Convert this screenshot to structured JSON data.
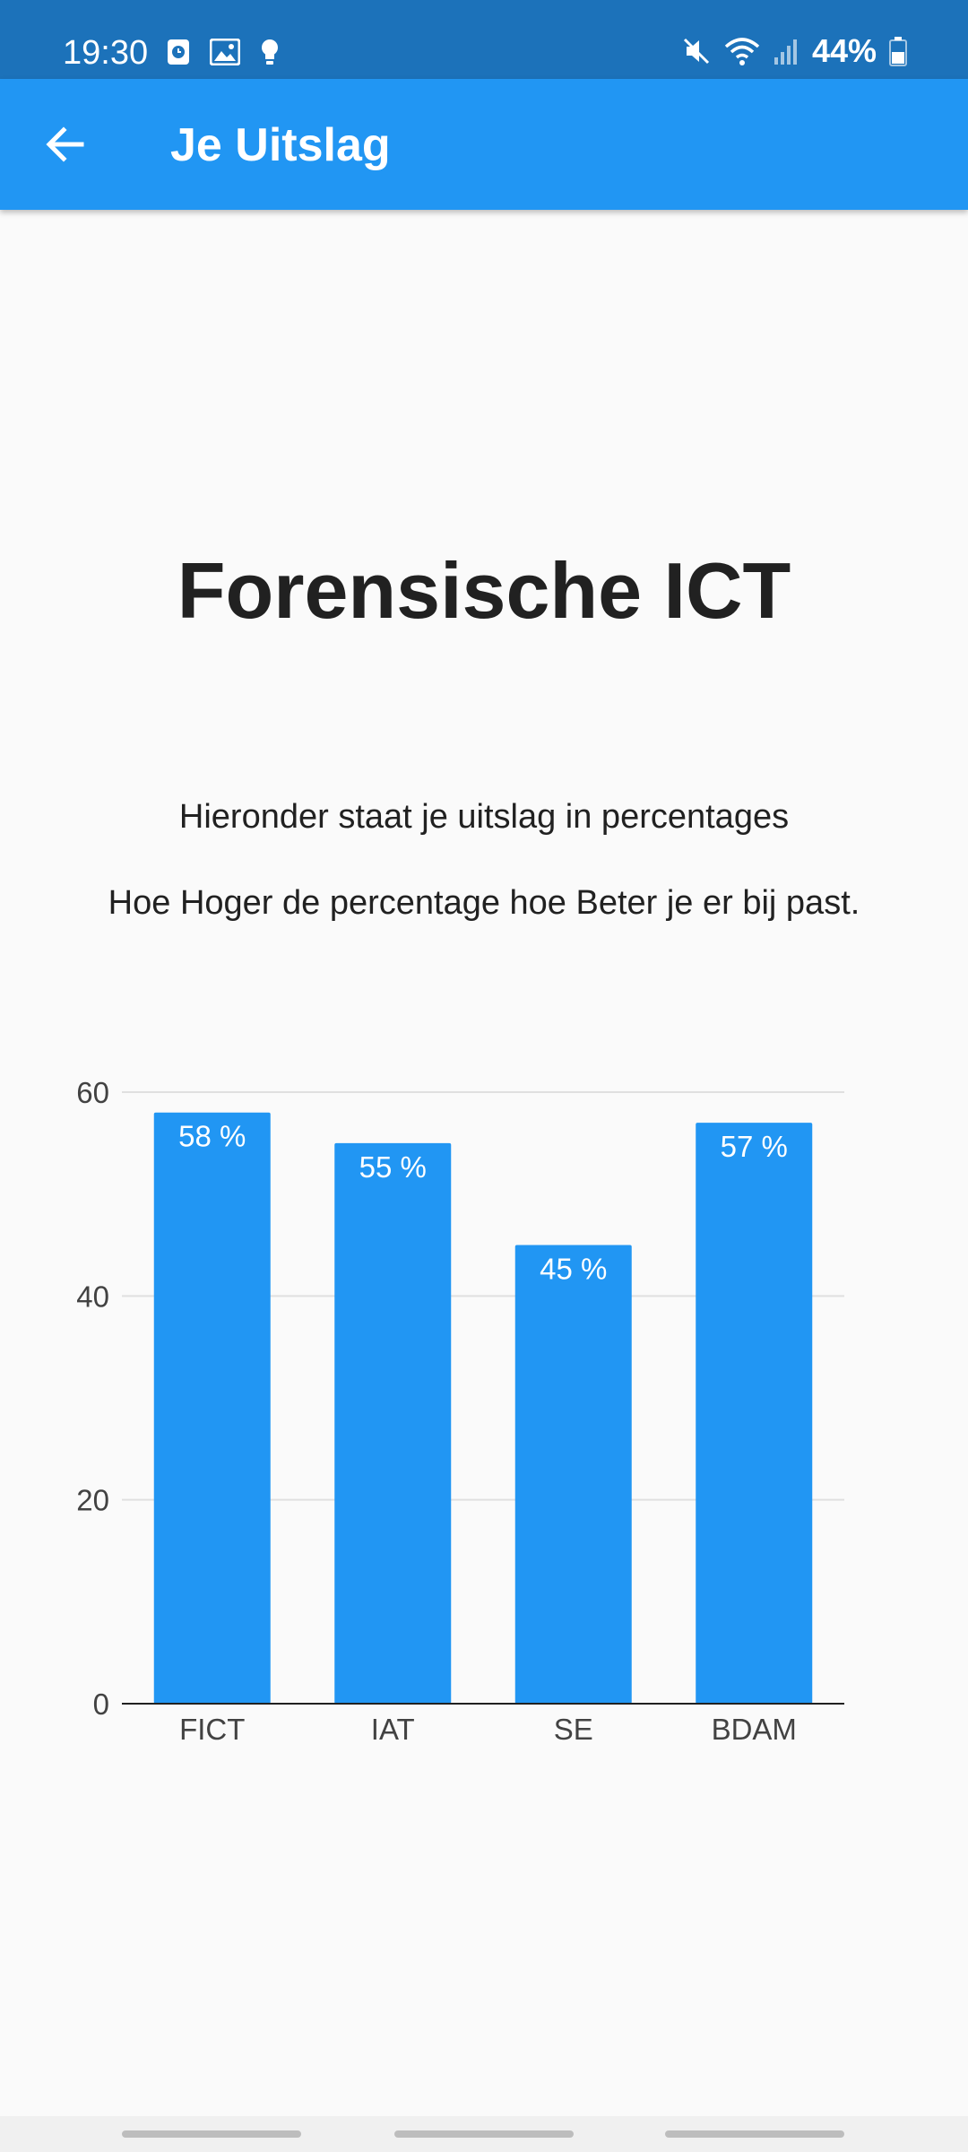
{
  "status_bar": {
    "time": "19:30",
    "battery": "44%",
    "left_icons": [
      "alarm-icon",
      "gallery-icon",
      "bulb-icon"
    ],
    "right_icons": [
      "mute-icon",
      "wifi-icon",
      "signal-icon",
      "battery-icon"
    ]
  },
  "app_bar": {
    "title": "Je Uitslag",
    "back_icon": "back-arrow-icon"
  },
  "content": {
    "heading": "Forensische ICT",
    "intro_line_1": "Hieronder staat je uitslag in percentages",
    "intro_line_2": "Hoe Hoger de percentage hoe Beter je er bij past."
  },
  "colors": {
    "status_bar": "#1c72ba",
    "app_bar": "#2196f3",
    "bar": "#2196f3",
    "background": "#fafafa"
  },
  "chart_data": {
    "type": "bar",
    "categories": [
      "FICT",
      "IAT",
      "SE",
      "BDAM"
    ],
    "values": [
      58,
      55,
      45,
      57
    ],
    "data_labels": [
      "58 %",
      "55 %",
      "45 %",
      "57 %"
    ],
    "yticks": [
      0,
      20,
      40,
      60
    ],
    "ylim": [
      0,
      60
    ],
    "grid": true
  }
}
